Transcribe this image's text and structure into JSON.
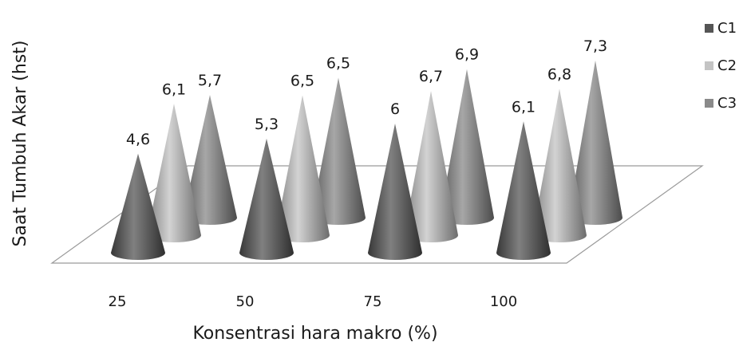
{
  "chart_data": {
    "type": "bar",
    "bar_shape": "cone",
    "style": "3d",
    "categories": [
      "25",
      "50",
      "75",
      "100"
    ],
    "series": [
      {
        "name": "C1",
        "values": [
          4.6,
          5.3,
          6,
          6.1
        ],
        "labels": [
          "4,6",
          "5,3",
          "6",
          "6,1"
        ],
        "color": "#555555"
      },
      {
        "name": "C2",
        "values": [
          6.1,
          6.5,
          6.7,
          6.8
        ],
        "labels": [
          "6,1",
          "6,5",
          "6,7",
          "6,8"
        ],
        "color": "#c4c4c4"
      },
      {
        "name": "C3",
        "values": [
          5.7,
          6.5,
          6.9,
          7.3
        ],
        "labels": [
          "5,7",
          "6,5",
          "6,9",
          "7,3"
        ],
        "color": "#8a8a8a"
      }
    ],
    "xlabel": "Konsentrasi hara makro (%)",
    "ylabel": "Saat Tumbuh Akar (hst)",
    "ylim": [
      0,
      8
    ],
    "legend_position": "right",
    "grid": false
  }
}
